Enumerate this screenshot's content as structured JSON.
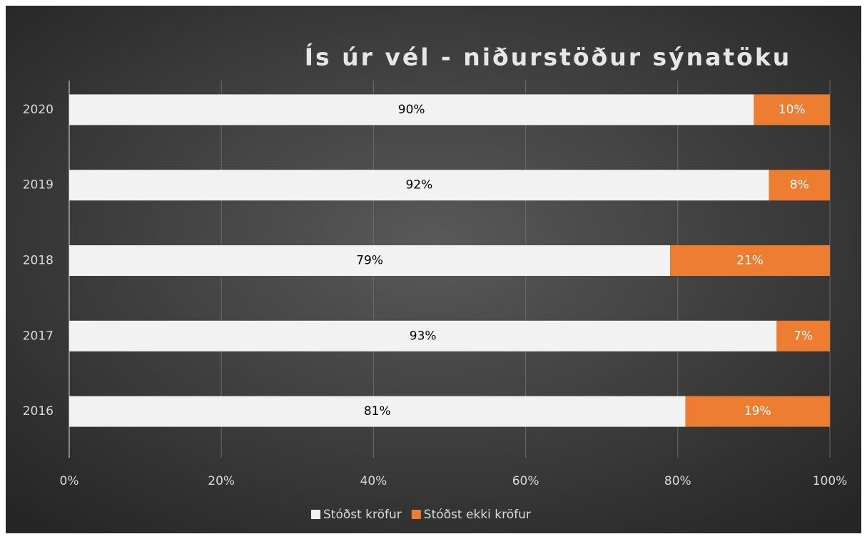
{
  "chart_data": {
    "type": "stacked-bar-horizontal",
    "title": "Ís úr vél - niðurstöður sýnatöku",
    "categories": [
      "2020",
      "2019",
      "2018",
      "2017",
      "2016"
    ],
    "series": [
      {
        "name": "Stóðst kröfur",
        "color": "#f2f2f2",
        "values": [
          90,
          92,
          79,
          93,
          81
        ],
        "value_labels": [
          "90%",
          "92%",
          "79%",
          "93%",
          "81%"
        ]
      },
      {
        "name": "Stóðst ekki kröfur",
        "color": "#ed7d31",
        "values": [
          10,
          8,
          21,
          7,
          19
        ],
        "value_labels": [
          "10%",
          "8%",
          "21%",
          "7%",
          "19%"
        ]
      }
    ],
    "xlim": [
      0,
      100
    ],
    "xticks": [
      {
        "value": 0,
        "label": "0%"
      },
      {
        "value": 20,
        "label": "20%"
      },
      {
        "value": 40,
        "label": "40%"
      },
      {
        "value": 60,
        "label": "60%"
      },
      {
        "value": 80,
        "label": "80%"
      },
      {
        "value": 100,
        "label": "100%"
      }
    ],
    "grid": true,
    "legend": "bottom"
  }
}
